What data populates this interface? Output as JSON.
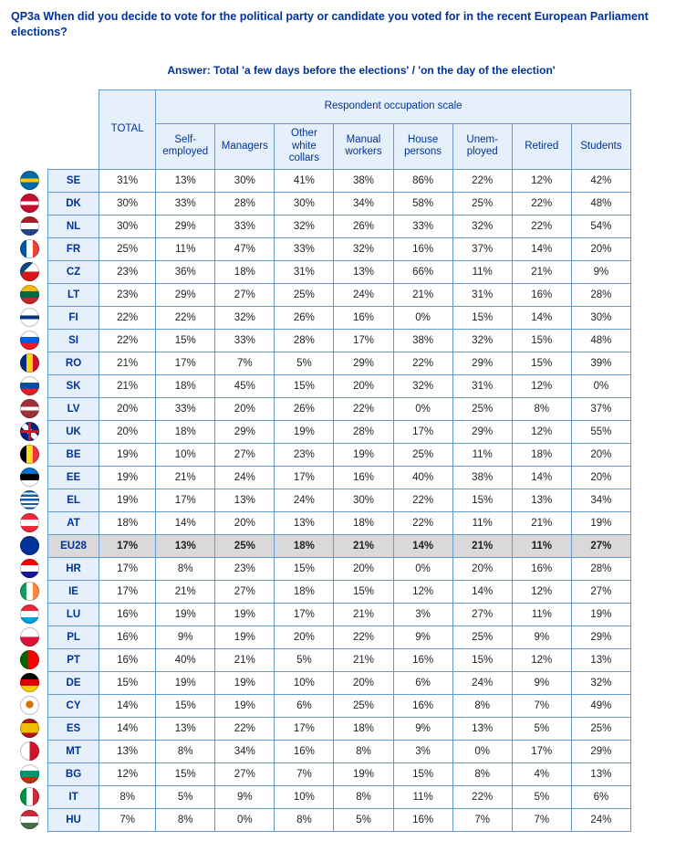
{
  "question_text": "QP3a When did you decide to vote for the political party or candidate you voted for in the recent European Parliament elections?",
  "answer_text": "Answer: Total 'a few days before the elections' / 'on the day of the election'",
  "headers": {
    "total": "TOTAL",
    "group": "Respondent occupation scale",
    "cols": [
      "Self-employed",
      "Managers",
      "Other white collars",
      "Manual workers",
      "House persons",
      "Unem-ployed",
      "Retired",
      "Students"
    ]
  },
  "highlight_code": "EU28",
  "rows": [
    {
      "code": "SE",
      "values": [
        "31%",
        "13%",
        "30%",
        "41%",
        "38%",
        "86%",
        "22%",
        "12%",
        "42%"
      ],
      "flag_css": "linear-gradient(to bottom,#006aa7 0 40%,#fecc00 40% 60%,#006aa7 60% 100%)"
    },
    {
      "code": "DK",
      "values": [
        "30%",
        "33%",
        "28%",
        "30%",
        "34%",
        "58%",
        "25%",
        "22%",
        "48%"
      ],
      "flag_css": "linear-gradient(to bottom,#c60c30 0 40%,#ffffff 40% 60%,#c60c30 60% 100%)"
    },
    {
      "code": "NL",
      "values": [
        "30%",
        "29%",
        "33%",
        "32%",
        "26%",
        "33%",
        "32%",
        "22%",
        "54%"
      ],
      "flag_css": "linear-gradient(to bottom,#ae1c28 0 33%,#ffffff 33% 66%,#21468b 66% 100%)"
    },
    {
      "code": "FR",
      "values": [
        "25%",
        "11%",
        "47%",
        "33%",
        "32%",
        "16%",
        "37%",
        "14%",
        "20%"
      ],
      "flag_css": "linear-gradient(to right,#0055a4 0 33%,#ffffff 33% 66%,#ef4135 66% 100%)"
    },
    {
      "code": "CZ",
      "values": [
        "23%",
        "36%",
        "18%",
        "31%",
        "13%",
        "66%",
        "11%",
        "21%",
        "9%"
      ],
      "flag_css": "linear-gradient(135deg,#11457e 0 35%,transparent 35%),linear-gradient(to bottom,#ffffff 0 50%,#d7141a 50% 100%)"
    },
    {
      "code": "LT",
      "values": [
        "23%",
        "29%",
        "27%",
        "25%",
        "24%",
        "21%",
        "31%",
        "16%",
        "28%"
      ],
      "flag_css": "linear-gradient(to bottom,#fdb913 0 33%,#006a44 33% 66%,#c1272d 66% 100%)"
    },
    {
      "code": "FI",
      "values": [
        "22%",
        "22%",
        "32%",
        "26%",
        "16%",
        "0%",
        "15%",
        "14%",
        "30%"
      ],
      "flag_css": "linear-gradient(to bottom,#ffffff 0 40%,#003580 40% 60%,#ffffff 60% 100%)"
    },
    {
      "code": "SI",
      "values": [
        "22%",
        "15%",
        "33%",
        "28%",
        "17%",
        "38%",
        "32%",
        "15%",
        "48%"
      ],
      "flag_css": "linear-gradient(to bottom,#ffffff 0 33%,#005ce5 33% 66%,#ed1c24 66% 100%)"
    },
    {
      "code": "RO",
      "values": [
        "21%",
        "17%",
        "7%",
        "5%",
        "29%",
        "22%",
        "29%",
        "15%",
        "39%"
      ],
      "flag_css": "linear-gradient(to right,#002b7f 0 33%,#fcd116 33% 66%,#ce1126 66% 100%)"
    },
    {
      "code": "SK",
      "values": [
        "21%",
        "18%",
        "45%",
        "15%",
        "20%",
        "32%",
        "31%",
        "12%",
        "0%"
      ],
      "flag_css": "linear-gradient(to bottom,#ffffff 0 33%,#0b4ea2 33% 66%,#ee1c25 66% 100%)"
    },
    {
      "code": "LV",
      "values": [
        "20%",
        "33%",
        "20%",
        "26%",
        "22%",
        "0%",
        "25%",
        "8%",
        "37%"
      ],
      "flag_css": "linear-gradient(to bottom,#9e3039 0 40%,#ffffff 40% 60%,#9e3039 60% 100%)"
    },
    {
      "code": "UK",
      "values": [
        "20%",
        "18%",
        "29%",
        "19%",
        "28%",
        "17%",
        "29%",
        "12%",
        "55%"
      ],
      "flag_css": "linear-gradient(to bottom,transparent 0 42%,#cf142b 42% 58%,transparent 58%),linear-gradient(to right,transparent 0 42%,#cf142b 42% 58%,transparent 58%),linear-gradient(45deg,#00247d 0 40%,#fff 40% 60%,#00247d 60%),linear-gradient(-45deg,#00247d 0 40%,#fff 40% 60%,#00247d 60%)"
    },
    {
      "code": "BE",
      "values": [
        "19%",
        "10%",
        "27%",
        "23%",
        "19%",
        "25%",
        "11%",
        "18%",
        "20%"
      ],
      "flag_css": "linear-gradient(to right,#000000 0 33%,#fdda24 33% 66%,#ef3340 66% 100%)"
    },
    {
      "code": "EE",
      "values": [
        "19%",
        "21%",
        "24%",
        "17%",
        "16%",
        "40%",
        "38%",
        "14%",
        "20%"
      ],
      "flag_css": "linear-gradient(to bottom,#0072ce 0 33%,#000000 33% 66%,#ffffff 66% 100%)"
    },
    {
      "code": "EL",
      "values": [
        "19%",
        "17%",
        "13%",
        "24%",
        "30%",
        "22%",
        "15%",
        "13%",
        "34%"
      ],
      "flag_css": "repeating-linear-gradient(to bottom,#0d5eaf 0 2.3px,#ffffff 2.3px 4.6px)"
    },
    {
      "code": "AT",
      "values": [
        "18%",
        "14%",
        "20%",
        "13%",
        "18%",
        "22%",
        "11%",
        "21%",
        "19%"
      ],
      "flag_css": "linear-gradient(to bottom,#ed2939 0 33%,#ffffff 33% 66%,#ed2939 66% 100%)"
    },
    {
      "code": "EU28",
      "values": [
        "17%",
        "13%",
        "25%",
        "18%",
        "21%",
        "14%",
        "21%",
        "11%",
        "27%"
      ],
      "flag_css": "radial-gradient(circle,#003399 0 100%)"
    },
    {
      "code": "HR",
      "values": [
        "17%",
        "8%",
        "23%",
        "15%",
        "20%",
        "0%",
        "20%",
        "16%",
        "28%"
      ],
      "flag_css": "linear-gradient(to bottom,#ff0000 0 33%,#ffffff 33% 66%,#171796 66% 100%)"
    },
    {
      "code": "IE",
      "values": [
        "17%",
        "21%",
        "27%",
        "18%",
        "15%",
        "12%",
        "14%",
        "12%",
        "27%"
      ],
      "flag_css": "linear-gradient(to right,#169b62 0 33%,#ffffff 33% 66%,#ff883e 66% 100%)"
    },
    {
      "code": "LU",
      "values": [
        "16%",
        "19%",
        "19%",
        "17%",
        "21%",
        "3%",
        "27%",
        "11%",
        "19%"
      ],
      "flag_css": "linear-gradient(to bottom,#ed2939 0 33%,#ffffff 33% 66%,#00a1de 66% 100%)"
    },
    {
      "code": "PL",
      "values": [
        "16%",
        "9%",
        "19%",
        "20%",
        "22%",
        "9%",
        "25%",
        "9%",
        "29%"
      ],
      "flag_css": "linear-gradient(to bottom,#ffffff 0 50%,#dc143c 50% 100%)"
    },
    {
      "code": "PT",
      "values": [
        "16%",
        "40%",
        "21%",
        "5%",
        "21%",
        "16%",
        "15%",
        "12%",
        "13%"
      ],
      "flag_css": "linear-gradient(to right,#006600 0 40%,#ff0000 40% 100%)"
    },
    {
      "code": "DE",
      "values": [
        "15%",
        "19%",
        "19%",
        "10%",
        "20%",
        "6%",
        "24%",
        "9%",
        "32%"
      ],
      "flag_css": "linear-gradient(to bottom,#000000 0 33%,#dd0000 33% 66%,#ffce00 66% 100%)"
    },
    {
      "code": "CY",
      "values": [
        "14%",
        "15%",
        "19%",
        "6%",
        "25%",
        "16%",
        "8%",
        "7%",
        "49%"
      ],
      "flag_css": "radial-gradient(circle at 50% 45%,#d57800 0 25%,#ffffff 28% 100%)"
    },
    {
      "code": "ES",
      "values": [
        "14%",
        "13%",
        "22%",
        "17%",
        "18%",
        "9%",
        "13%",
        "5%",
        "25%"
      ],
      "flag_css": "linear-gradient(to bottom,#aa151b 0 25%,#f1bf00 25% 75%,#aa151b 75% 100%)"
    },
    {
      "code": "MT",
      "values": [
        "13%",
        "8%",
        "34%",
        "16%",
        "8%",
        "3%",
        "0%",
        "17%",
        "29%"
      ],
      "flag_css": "linear-gradient(to right,#ffffff 0 50%,#cf142b 50% 100%)"
    },
    {
      "code": "BG",
      "values": [
        "12%",
        "15%",
        "27%",
        "7%",
        "19%",
        "15%",
        "8%",
        "4%",
        "13%"
      ],
      "flag_css": "linear-gradient(to bottom,#ffffff 0 33%,#00966e 33% 66%,#d62612 66% 100%)"
    },
    {
      "code": "IT",
      "values": [
        "8%",
        "5%",
        "9%",
        "10%",
        "8%",
        "11%",
        "22%",
        "5%",
        "6%"
      ],
      "flag_css": "linear-gradient(to right,#009246 0 33%,#ffffff 33% 66%,#ce2b37 66% 100%)"
    },
    {
      "code": "HU",
      "values": [
        "7%",
        "8%",
        "0%",
        "8%",
        "5%",
        "16%",
        "7%",
        "7%",
        "24%"
      ],
      "flag_css": "linear-gradient(to bottom,#cd2a3e 0 33%,#ffffff 33% 66%,#436f4d 66% 100%)"
    }
  ]
}
